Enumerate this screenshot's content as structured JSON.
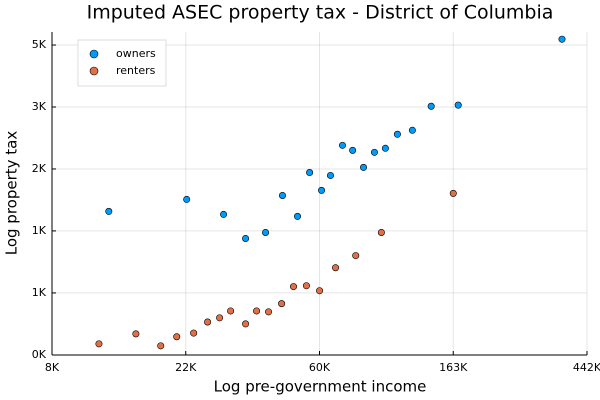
{
  "chart_data": {
    "type": "scatter",
    "title": "Imputed ASEC property tax - District of Columbia",
    "x_label": "Log pre-government income",
    "y_label": "Log property tax",
    "xscale": "log",
    "yscale": "log",
    "grid": true,
    "legend": "top-left",
    "xlim": [
      8103,
      442413
    ],
    "ylim": [
      403,
      5460
    ],
    "xticks": [
      {
        "value": 8103,
        "label": "8K"
      },
      {
        "value": 22026,
        "label": "22K"
      },
      {
        "value": 59874,
        "label": "60K"
      },
      {
        "value": 162755,
        "label": "163K"
      },
      {
        "value": 442413,
        "label": "442K"
      }
    ],
    "yticks": [
      {
        "value": 403,
        "label": "0K"
      },
      {
        "value": 665,
        "label": "1K"
      },
      {
        "value": 1097,
        "label": "1K"
      },
      {
        "value": 1808,
        "label": "2K"
      },
      {
        "value": 2981,
        "label": "3K"
      },
      {
        "value": 4915,
        "label": "5K"
      }
    ],
    "series": [
      {
        "name": "owners",
        "color": "#009af9",
        "x": [
          12390,
          22180,
          29220,
          34450,
          40000,
          45400,
          50800,
          55600,
          60800,
          65000,
          71100,
          76700,
          83200,
          90300,
          98000,
          107200,
          119900,
          138000,
          168900,
          367000
        ],
        "values": [
          1284,
          1414,
          1253,
          1032,
          1083,
          1460,
          1233,
          1757,
          1521,
          1716,
          2188,
          2101,
          1831,
          2068,
          2136,
          2392,
          2470,
          2999,
          3026,
          5152
        ]
      },
      {
        "name": "renters",
        "color": "#e26f46",
        "x": [
          11510,
          15170,
          18270,
          20590,
          23370,
          25930,
          28370,
          30800,
          34450,
          37400,
          40900,
          45100,
          49300,
          54300,
          59900,
          67500,
          78500,
          95100,
          162800
        ],
        "values": [
          441,
          478,
          434,
          467,
          481,
          526,
          544,
          575,
          518,
          575,
          571,
          610,
          700,
          705,
          677,
          815,
          899,
          1083,
          1485
        ]
      }
    ]
  }
}
